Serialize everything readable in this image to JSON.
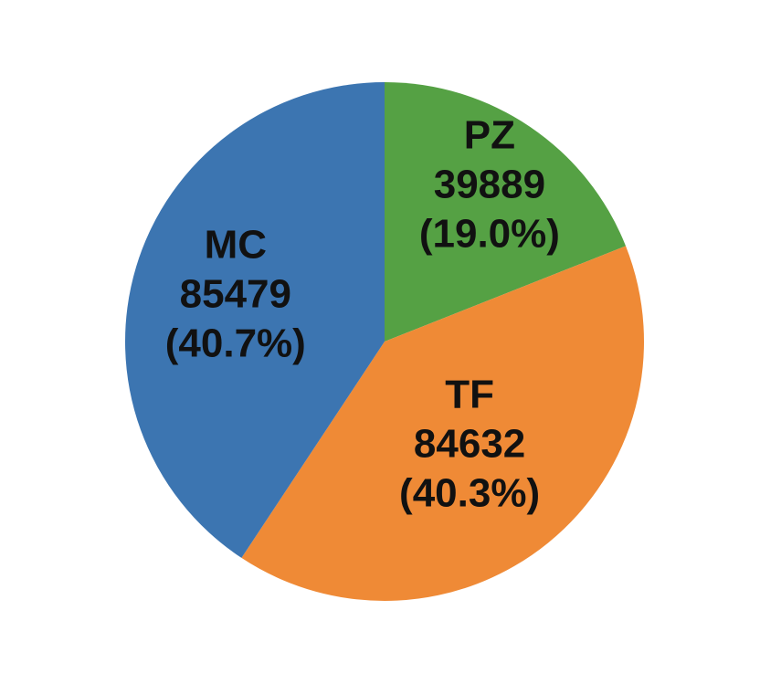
{
  "chart_data": {
    "type": "pie",
    "title": "",
    "start": "12 o'clock",
    "direction": "clockwise",
    "slices": [
      {
        "label": "PZ",
        "value": 39889,
        "percent_text": "(19.0%)",
        "color": "#55a144"
      },
      {
        "label": "TF",
        "value": 84632,
        "percent_text": "(40.3%)",
        "color": "#ef8a36"
      },
      {
        "label": "MC",
        "value": 85479,
        "percent_text": "(40.7%)",
        "color": "#3c75b1"
      }
    ]
  }
}
